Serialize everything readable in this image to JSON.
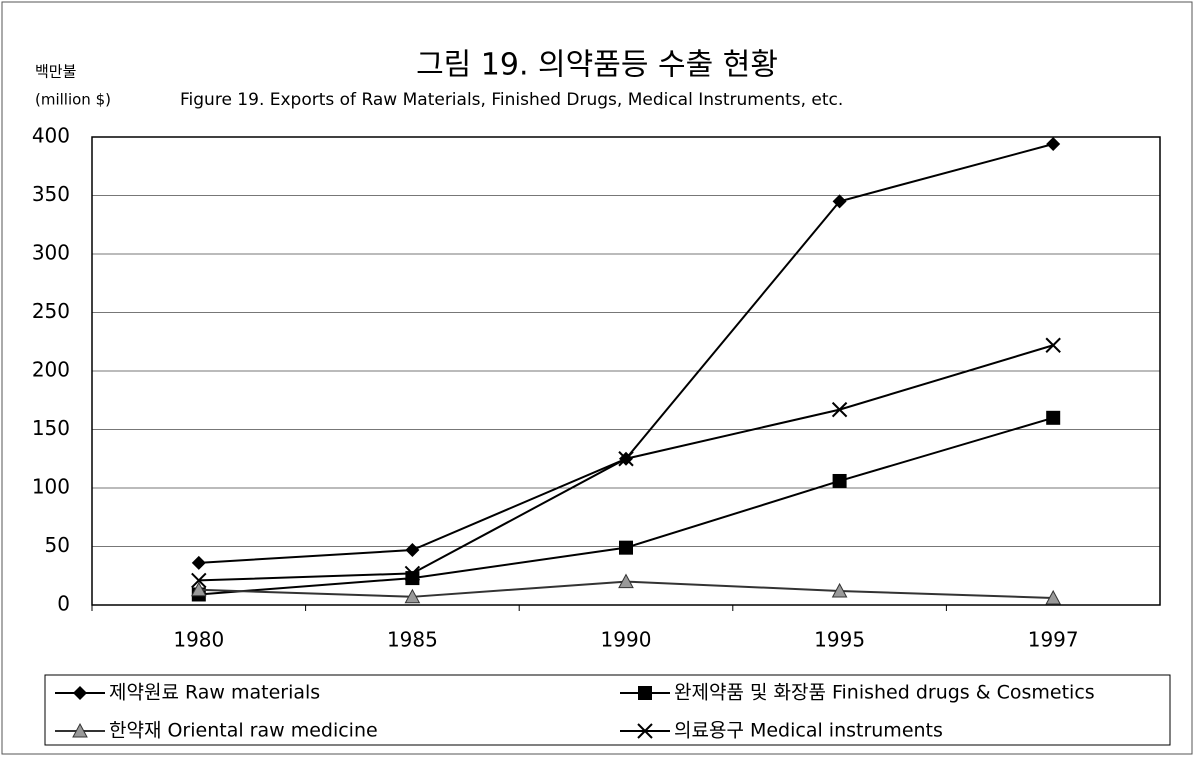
{
  "chart_data": {
    "type": "line",
    "title": "그림 19. 의약품등 수출 현황",
    "subtitle": "Figure 19. Exports of Raw Materials, Finished Drugs, Medical Instruments, etc.",
    "y_label": "백만불",
    "y_unit": "(million $)",
    "categories": [
      "1980",
      "1985",
      "1990",
      "1995",
      "1997"
    ],
    "series": [
      {
        "name": "제약원료 Raw materials",
        "color": "#000000",
        "marker": "diamond",
        "values": [
          36,
          47,
          125,
          345,
          394
        ]
      },
      {
        "name": "완제약품 및 화장품 Finished drugs & Cosmetics",
        "color": "#000000",
        "marker": "square",
        "values": [
          9,
          23,
          49,
          106,
          160
        ]
      },
      {
        "name": "한약재 Oriental raw medicine",
        "color": "#333333",
        "marker": "triangle",
        "values": [
          13,
          7,
          20,
          12,
          6
        ]
      },
      {
        "name": "의료용구 Medical instruments",
        "color": "#000000",
        "marker": "x",
        "values": [
          21,
          27,
          125,
          167,
          222
        ]
      }
    ],
    "ylim": [
      0,
      400
    ],
    "yticks": [
      0,
      50,
      100,
      150,
      200,
      250,
      300,
      350,
      400
    ],
    "grid": true,
    "legend": "bottom"
  }
}
